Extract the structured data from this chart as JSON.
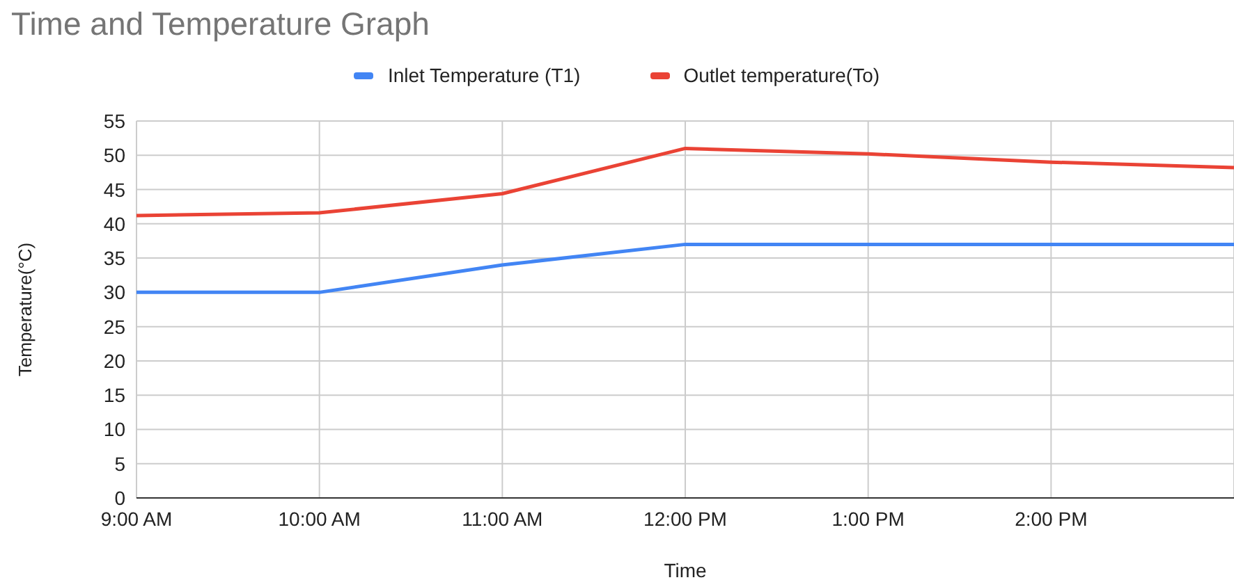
{
  "chart_data": {
    "type": "line",
    "title": "Time and Temperature Graph",
    "xlabel": "Time",
    "ylabel": "Temperature(°C)",
    "x": [
      9,
      10,
      11,
      12,
      13,
      14,
      15
    ],
    "series": [
      {
        "name": "Inlet Temperature (T1)",
        "color": "#4285f4",
        "values": [
          30,
          30,
          34,
          37,
          37,
          37,
          37
        ]
      },
      {
        "name": "Outlet temperature(To)",
        "color": "#ea4335",
        "values": [
          41.2,
          41.6,
          44.4,
          51,
          50.2,
          49,
          48.2
        ]
      }
    ],
    "xlim": [
      9,
      15
    ],
    "xticks": [
      {
        "value": 9,
        "label": "9:00 AM"
      },
      {
        "value": 10,
        "label": "10:00 AM"
      },
      {
        "value": 11,
        "label": "11:00 AM"
      },
      {
        "value": 12,
        "label": "12:00 PM"
      },
      {
        "value": 13,
        "label": "1:00 PM"
      },
      {
        "value": 14,
        "label": "2:00 PM"
      },
      {
        "value": 15,
        "label": null
      }
    ],
    "ylim": [
      0,
      55
    ],
    "yticks": [
      0,
      5,
      10,
      15,
      20,
      25,
      30,
      35,
      40,
      45,
      50,
      55
    ],
    "grid": true,
    "legend": "top",
    "marker": "none",
    "line_style": "solid"
  }
}
